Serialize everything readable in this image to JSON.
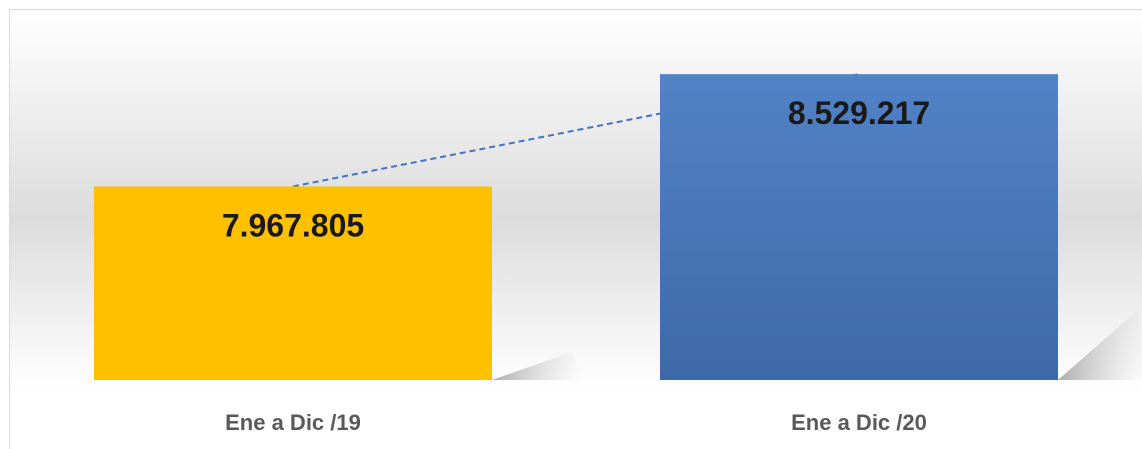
{
  "chart_data": {
    "type": "bar",
    "categories": [
      "Ene a Dic /19",
      "Ene a Dic /20"
    ],
    "values": [
      7967805,
      8529217
    ],
    "value_labels": [
      "7.967.805",
      "8.529.217"
    ],
    "bar_colors": [
      "#FFC000",
      "#4472C4"
    ],
    "trendline": {
      "style": "dashed",
      "color": "#4472C4"
    },
    "title": "",
    "xlabel": "",
    "ylabel": "",
    "grid": false,
    "legend": "none"
  }
}
